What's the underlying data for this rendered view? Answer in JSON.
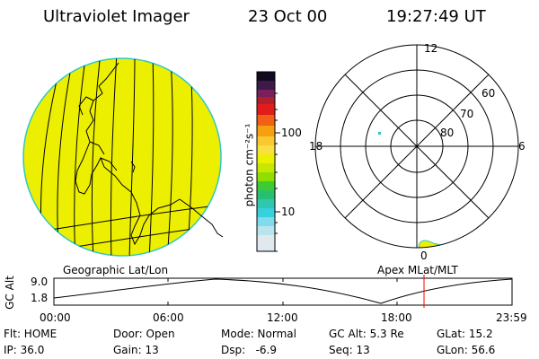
{
  "header": {
    "instrument": "Ultraviolet Imager",
    "date": "23 Oct 00",
    "time": "19:27:49 UT"
  },
  "colorbar": {
    "unit_label": "photon cm⁻²s⁻¹",
    "tick_high": "100",
    "tick_low": "10"
  },
  "polar_plot": {
    "mlt_top": "12",
    "mlt_left": "18",
    "mlt_right": "6",
    "mlt_bottom": "0",
    "lat_60": "60",
    "lat_70": "70",
    "lat_80": "80"
  },
  "map_labels": {
    "left": "Geographic Lat/Lon",
    "right": "Apex MLat/MLT"
  },
  "altitude_plot": {
    "ylabel": "GC Alt",
    "y_top": "9.0",
    "y_bottom": "1.8",
    "x_ticks": [
      "00:00",
      "06:00",
      "12:00",
      "18:00",
      "23:59"
    ]
  },
  "status": {
    "flt": "Flt: HOME",
    "door": "Door: Open",
    "mode": "Mode: Normal",
    "gc_alt": "GC Alt: 5.3 Re",
    "glat": "GLat: 15.2",
    "ip": "IP: 36.0",
    "gain": "Gain: 13",
    "dsp": "Dsp:   -6.9",
    "seq": "Seq: 13",
    "glon": "GLon: 56.6"
  },
  "colors": {
    "globe_fill": "#ecef00",
    "globe_edge": "#2ec8c8",
    "marker": "#ff0000"
  }
}
